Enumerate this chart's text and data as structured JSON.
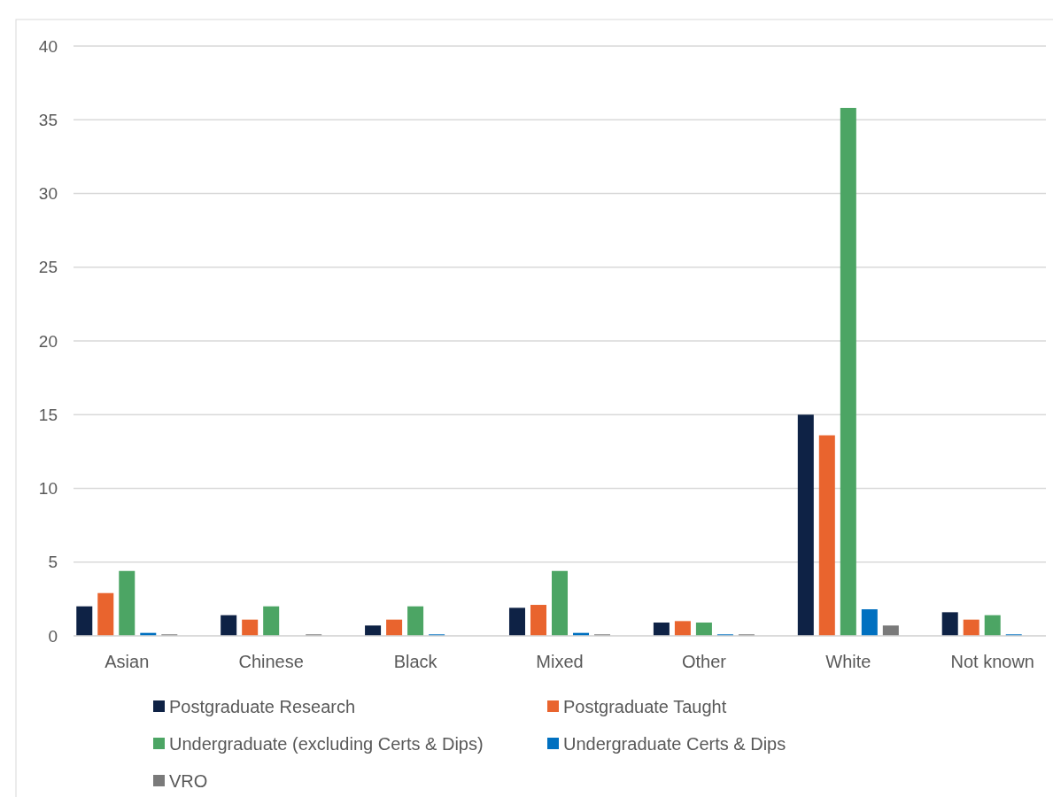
{
  "chart_data": {
    "type": "bar",
    "categories": [
      "Asian",
      "Chinese",
      "Black",
      "Mixed",
      "Other",
      "White",
      "Not known"
    ],
    "series": [
      {
        "name": "Postgraduate Research",
        "color": "#0e2245",
        "values": [
          2.0,
          1.4,
          0.7,
          1.9,
          0.9,
          15.0,
          1.6
        ]
      },
      {
        "name": "Postgraduate Taught",
        "color": "#e9642e",
        "values": [
          2.9,
          1.1,
          1.1,
          2.1,
          1.0,
          13.6,
          1.1
        ]
      },
      {
        "name": "Undergraduate (excluding Certs & Dips)",
        "color": "#4ca564",
        "values": [
          4.4,
          2.0,
          2.0,
          4.4,
          0.9,
          35.8,
          1.4
        ]
      },
      {
        "name": "Undergraduate Certs & Dips",
        "color": "#0070c0",
        "values": [
          0.2,
          0,
          0.1,
          0.2,
          0.1,
          1.8,
          0.1
        ]
      },
      {
        "name": "VRO",
        "color": "#7a7a7a",
        "values": [
          0.1,
          0.1,
          0,
          0.1,
          0.1,
          0.7,
          0
        ]
      }
    ],
    "ylim": [
      0,
      40
    ],
    "yticks": [
      0,
      5,
      10,
      15,
      20,
      25,
      30,
      35,
      40
    ],
    "grid": "y",
    "legend": "bottom"
  }
}
